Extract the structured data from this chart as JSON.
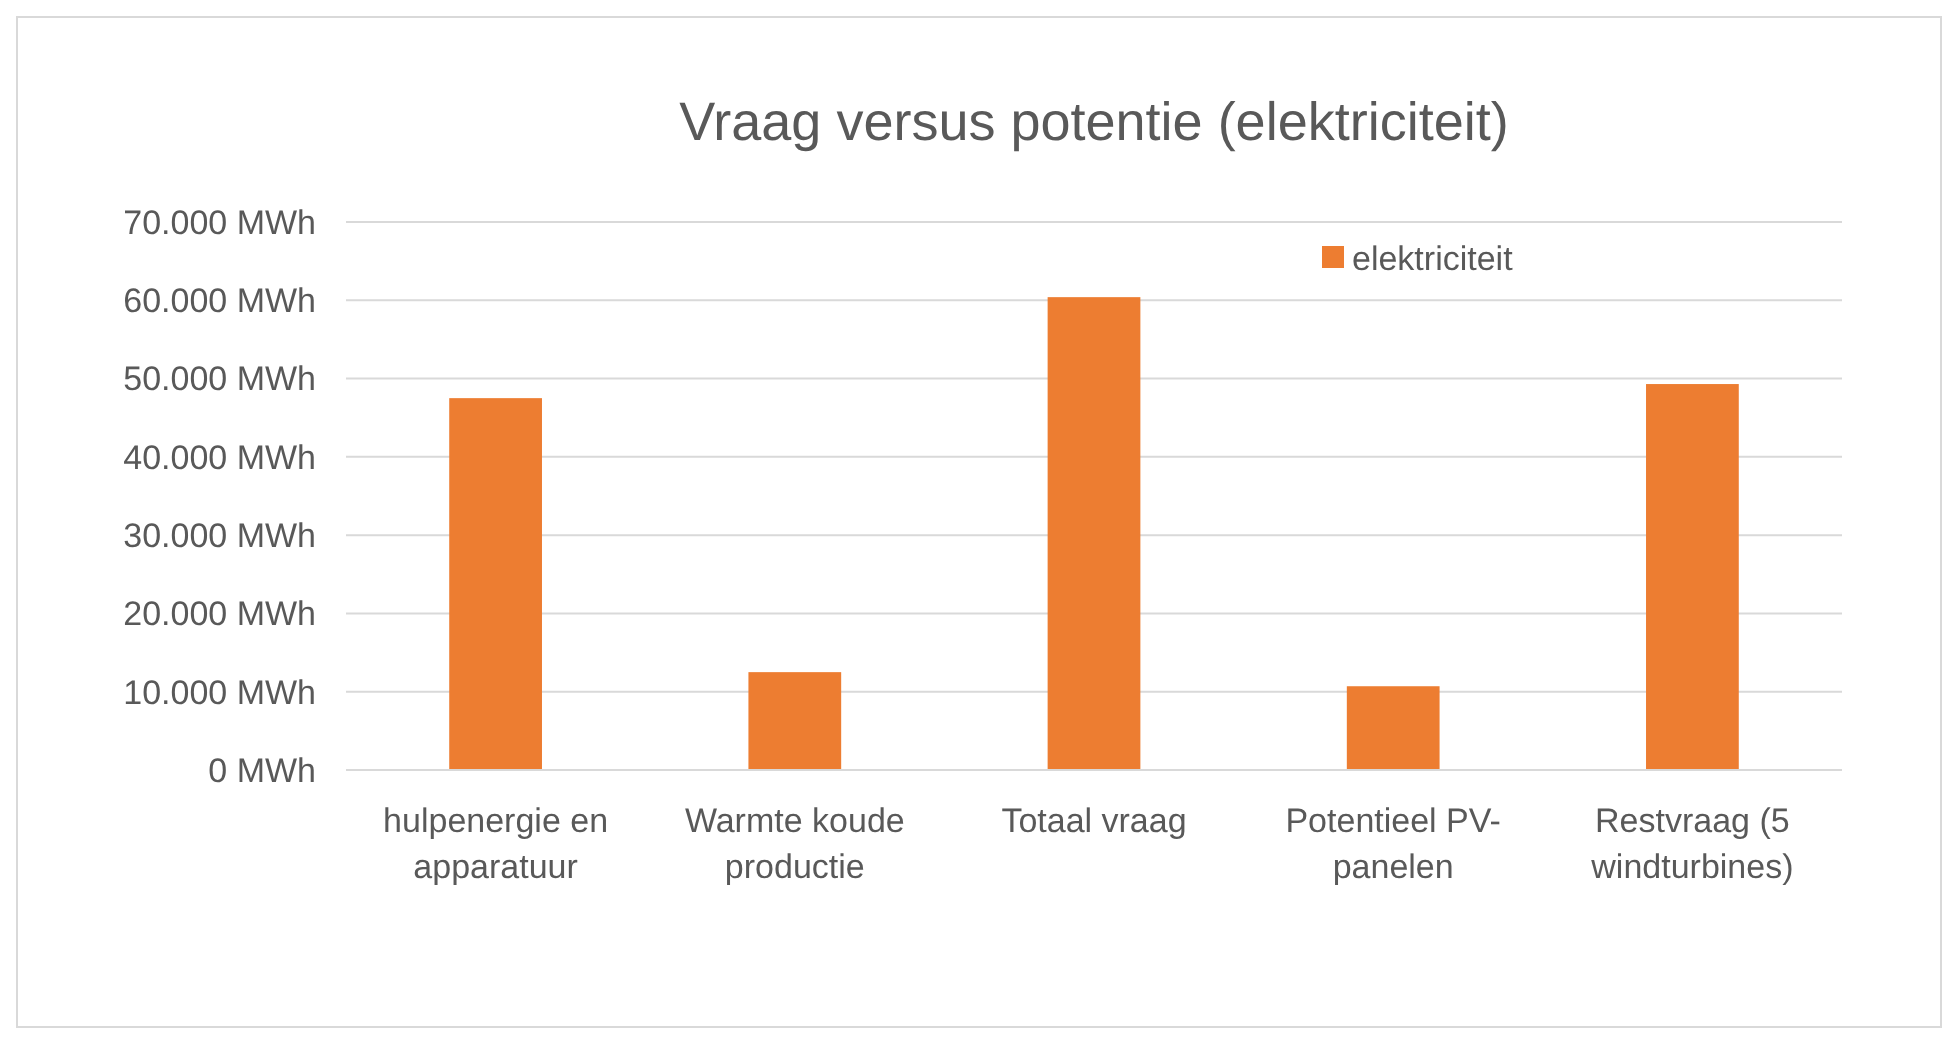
{
  "chart_data": {
    "type": "bar",
    "title": "Vraag versus potentie (elektriciteit)",
    "categories": [
      "hulpenergie en apparatuur",
      "Warmte koude productie",
      "Totaal vraag",
      "Potentieel PV-panelen",
      "Restvraag (5 windturbines)"
    ],
    "series": [
      {
        "name": "elektriciteit",
        "color": "#ed7d31",
        "values": [
          47500,
          12500,
          60400,
          10700,
          49300
        ]
      }
    ],
    "ylim": [
      0,
      70000
    ],
    "yticks": [
      {
        "value": 0,
        "label": "0 MWh"
      },
      {
        "value": 10000,
        "label": "10.000 MWh"
      },
      {
        "value": 20000,
        "label": "20.000 MWh"
      },
      {
        "value": 30000,
        "label": "30.000 MWh"
      },
      {
        "value": 40000,
        "label": "40.000 MWh"
      },
      {
        "value": 50000,
        "label": "50.000 MWh"
      },
      {
        "value": 60000,
        "label": "60.000 MWh"
      },
      {
        "value": 70000,
        "label": "70.000 MWh"
      }
    ],
    "grid": "y",
    "legend": "top right"
  }
}
